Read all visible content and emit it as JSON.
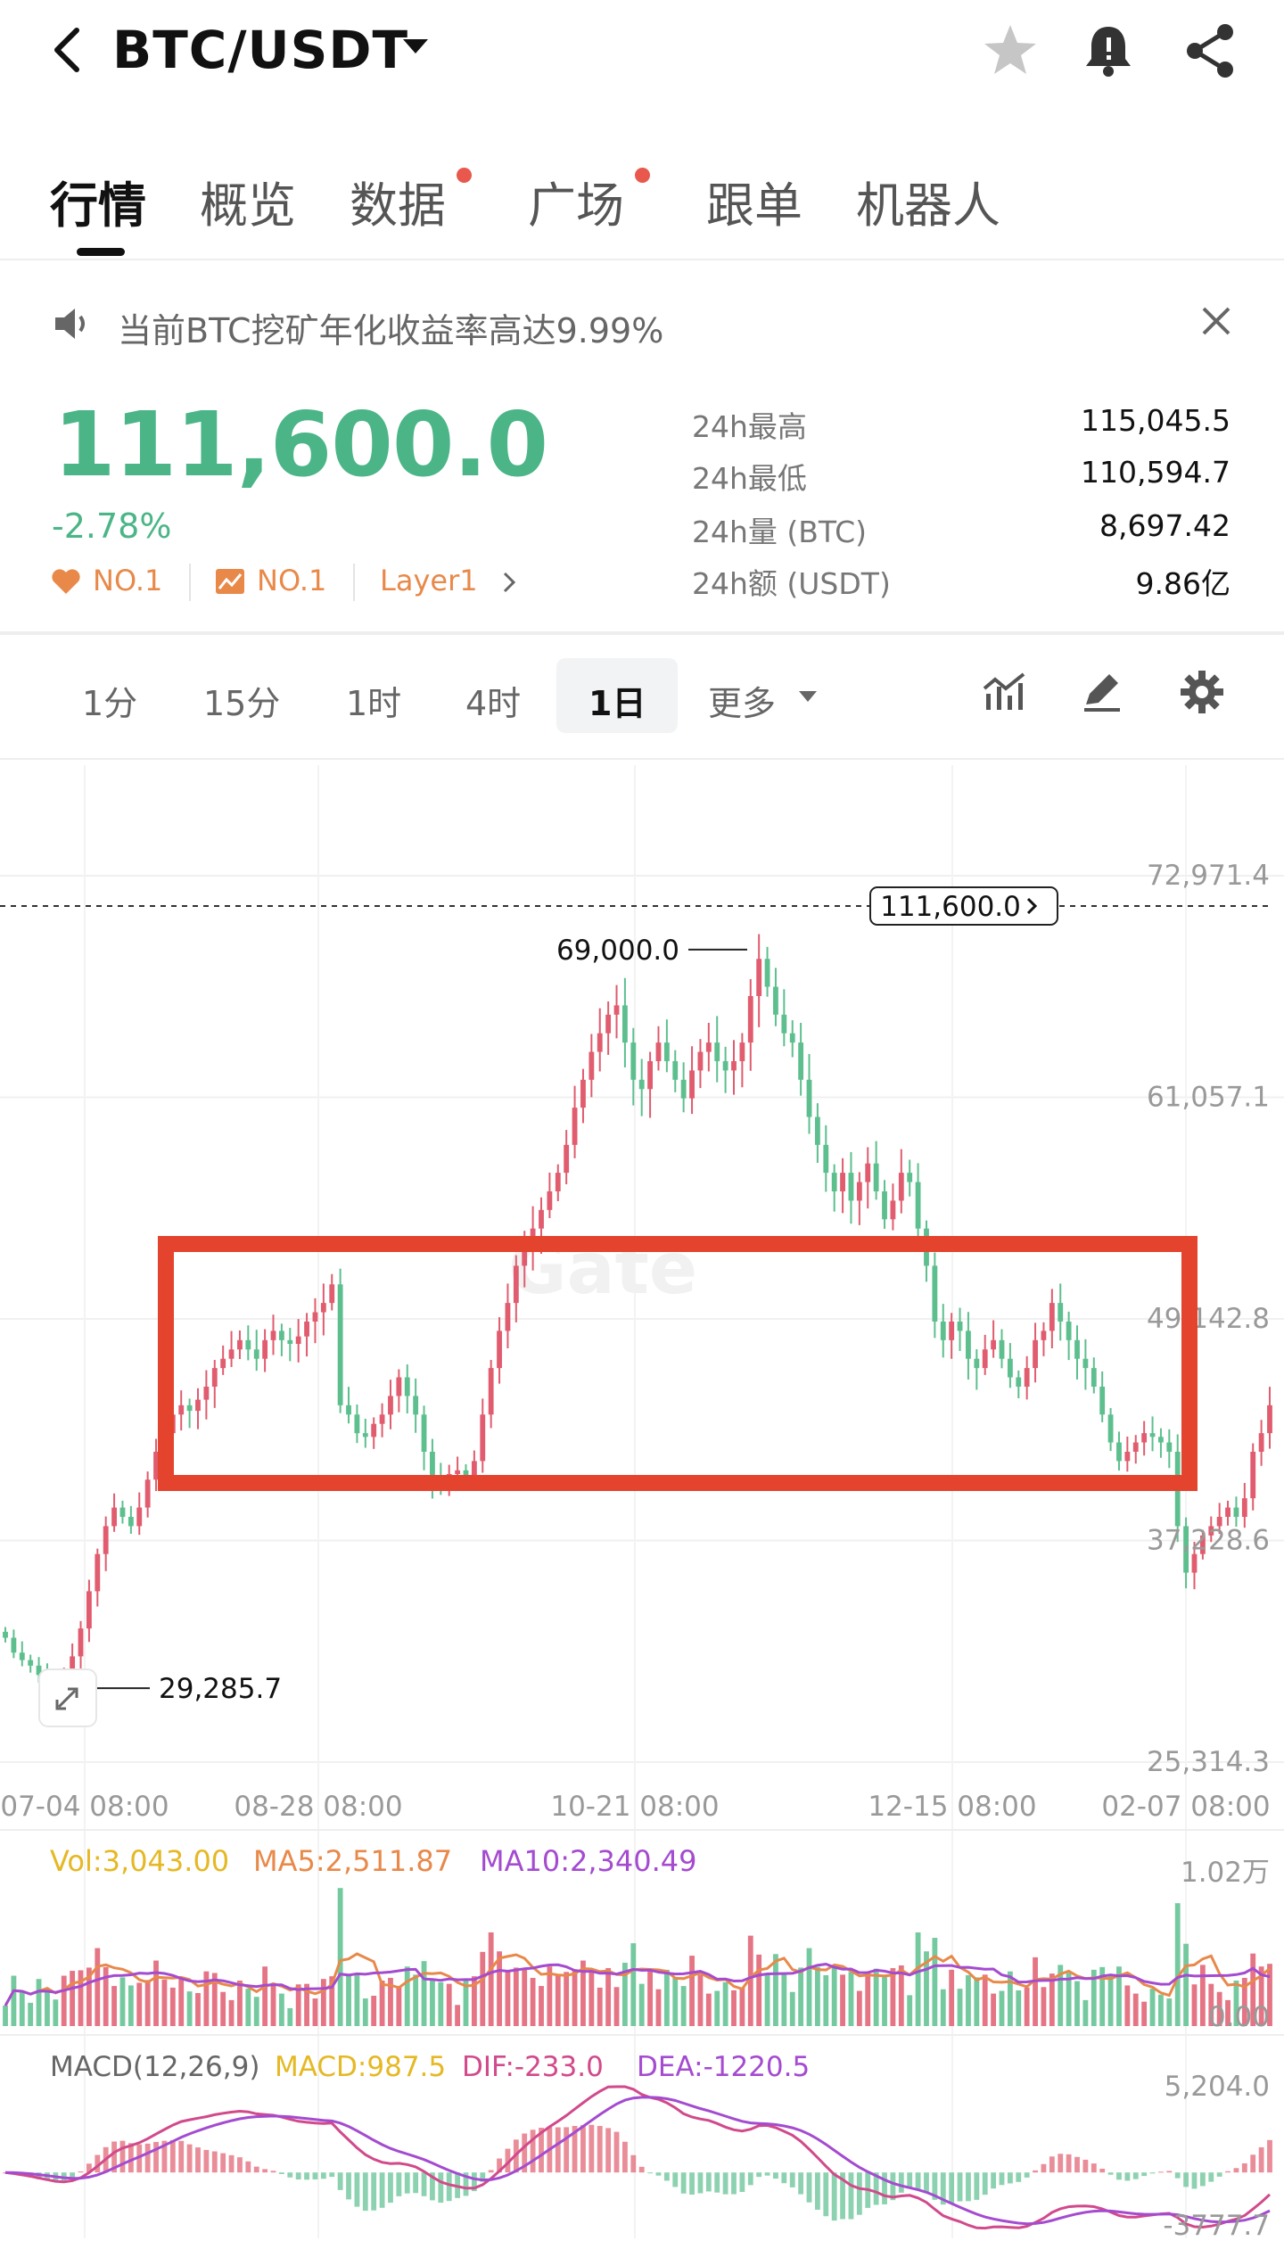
{
  "header": {
    "pair": "BTC/USDT"
  },
  "tabs": [
    {
      "label": "行情",
      "active": true,
      "dot": false
    },
    {
      "label": "概览",
      "active": false,
      "dot": false
    },
    {
      "label": "数据",
      "active": false,
      "dot": true
    },
    {
      "label": "广场",
      "active": false,
      "dot": true
    },
    {
      "label": "跟单",
      "active": false,
      "dot": false
    },
    {
      "label": "机器人",
      "active": false,
      "dot": false
    }
  ],
  "notice": {
    "text": "当前BTC挖矿年化收益率高达9.99%"
  },
  "ticker": {
    "price": "111,600.0",
    "change": "-2.78%",
    "rank1": "NO.1",
    "rank2": "NO.1",
    "category": "Layer1",
    "stats": [
      {
        "label": "24h最高",
        "value": "115,045.5"
      },
      {
        "label": "24h最低",
        "value": "110,594.7"
      },
      {
        "label": "24h量 (BTC)",
        "value": "8,697.42"
      },
      {
        "label": "24h额 (USDT)",
        "value": "9.86亿"
      }
    ]
  },
  "timeframes": {
    "items": [
      "1分",
      "15分",
      "1时",
      "4时",
      "1日"
    ],
    "active": "1日",
    "more": "更多"
  },
  "colors": {
    "up": "#e05c6e",
    "down": "#5dbf8e",
    "price_green": "#4bb587",
    "highlight_box": "#e4442e",
    "accent_orange": "#e8894a"
  },
  "chart_data": [
    {
      "type": "candlestick",
      "y_ticks": [
        "72,971.4",
        "61,057.1",
        "49,142.8",
        "37,228.6",
        "25,314.3"
      ],
      "ylim": [
        25314.3,
        72971.4
      ],
      "x_ticks": [
        "07-04 08:00",
        "08-28 08:00",
        "10-21 08:00",
        "12-15 08:00",
        "02-07 08:00"
      ],
      "current_price_label": "111,600.0",
      "annotations": [
        {
          "label": "69,000.0",
          "value": 69000.0
        },
        {
          "label": "29,285.7",
          "value": 29285.7
        }
      ],
      "close_series": [
        32000,
        31200,
        30800,
        30500,
        30000,
        29700,
        29400,
        29900,
        31000,
        32500,
        34500,
        36500,
        38000,
        39000,
        38500,
        38000,
        39000,
        40500,
        42000,
        43000,
        44000,
        44500,
        44200,
        44800,
        45500,
        46500,
        47000,
        47500,
        48000,
        47500,
        47000,
        48000,
        48500,
        48000,
        47800,
        48200,
        49000,
        49500,
        50000,
        51000,
        44500,
        44000,
        43000,
        42800,
        43500,
        44000,
        45000,
        46000,
        45000,
        44000,
        42000,
        40500,
        40000,
        40800,
        41000,
        40500,
        41500,
        44000,
        46500,
        48500,
        50000,
        52000,
        53000,
        54000,
        55000,
        56000,
        57000,
        58500,
        60500,
        62000,
        63500,
        64500,
        65500,
        66000,
        64000,
        62000,
        61500,
        63000,
        64000,
        63000,
        62000,
        61000,
        62500,
        63500,
        64000,
        63000,
        62500,
        63000,
        64000,
        66500,
        68500,
        67000,
        65500,
        64500,
        64000,
        62000,
        60000,
        58500,
        57000,
        56000,
        57000,
        55500,
        56500,
        57500,
        56000,
        54500,
        55500,
        57000,
        56500,
        54000,
        52000,
        49000,
        48000,
        49000,
        48500,
        47000,
        46500,
        47500,
        48000,
        47000,
        46000,
        45500,
        46500,
        48000,
        48500,
        50000,
        49000,
        48000,
        47000,
        46500,
        45500,
        44000,
        42500,
        41500,
        42000,
        42500,
        43000,
        42800,
        42500,
        42000,
        38000,
        35500,
        36500,
        37500,
        38000,
        38500,
        39000,
        38500,
        39500,
        42000,
        43000,
        44500
      ],
      "xlabel": "",
      "ylabel": ""
    },
    {
      "type": "bar",
      "legend": {
        "vol": "Vol:3,043.00",
        "ma5": "MA5:2,511.87",
        "ma10": "MA10:2,340.49"
      },
      "y_ticks": [
        "1.02万",
        "0.00"
      ],
      "ylim": [
        0,
        10200
      ]
    },
    {
      "type": "line",
      "legend": {
        "name": "MACD(12,26,9)",
        "macd": "MACD:987.5",
        "dif": "DIF:-233.0",
        "dea": "DEA:-1220.5"
      },
      "y_ticks": [
        "5,204.0",
        "-3777.7"
      ],
      "ylim": [
        -3777.7,
        5204.0
      ]
    }
  ]
}
